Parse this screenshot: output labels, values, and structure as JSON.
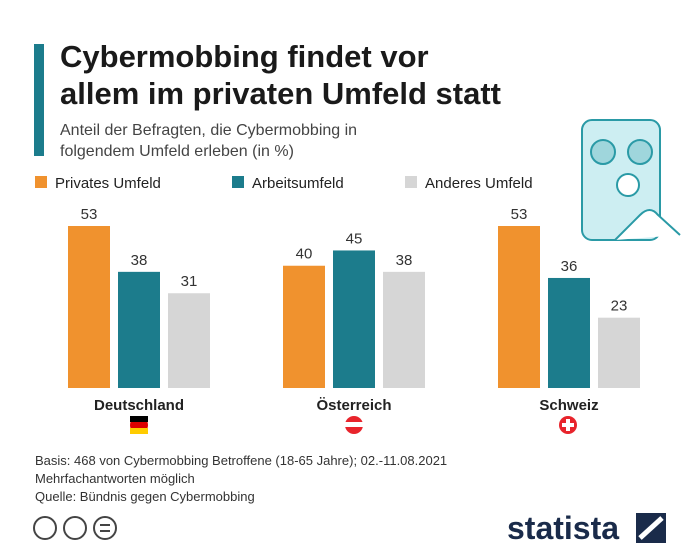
{
  "chart_data": {
    "type": "bar",
    "title": [
      "Cybermobbing findet vor",
      "allem im privaten Umfeld statt"
    ],
    "subtitle": [
      "Anteil der Befragten, die Cybermobbing in",
      "folgendem Umfeld erleben (in %)"
    ],
    "categories": [
      "Deutschland",
      "Österreich",
      "Schweiz"
    ],
    "series": [
      {
        "name": "Privates Umfeld",
        "color": "#f0922e",
        "values": [
          53,
          40,
          53
        ]
      },
      {
        "name": "Arbeitsumfeld",
        "color": "#1c7c8c",
        "values": [
          38,
          45,
          36
        ]
      },
      {
        "name": "Anderes Umfeld",
        "color": "#d6d6d6",
        "values": [
          31,
          38,
          23
        ]
      }
    ],
    "notes": [
      "Basis: 468 von Cybermobbing Betroffene (18-65 Jahre); 02.-11.08.2021",
      "Mehrfachantworten möglich",
      "Quelle: Bündnis gegen Cybermobbing"
    ],
    "brand": "statista"
  }
}
